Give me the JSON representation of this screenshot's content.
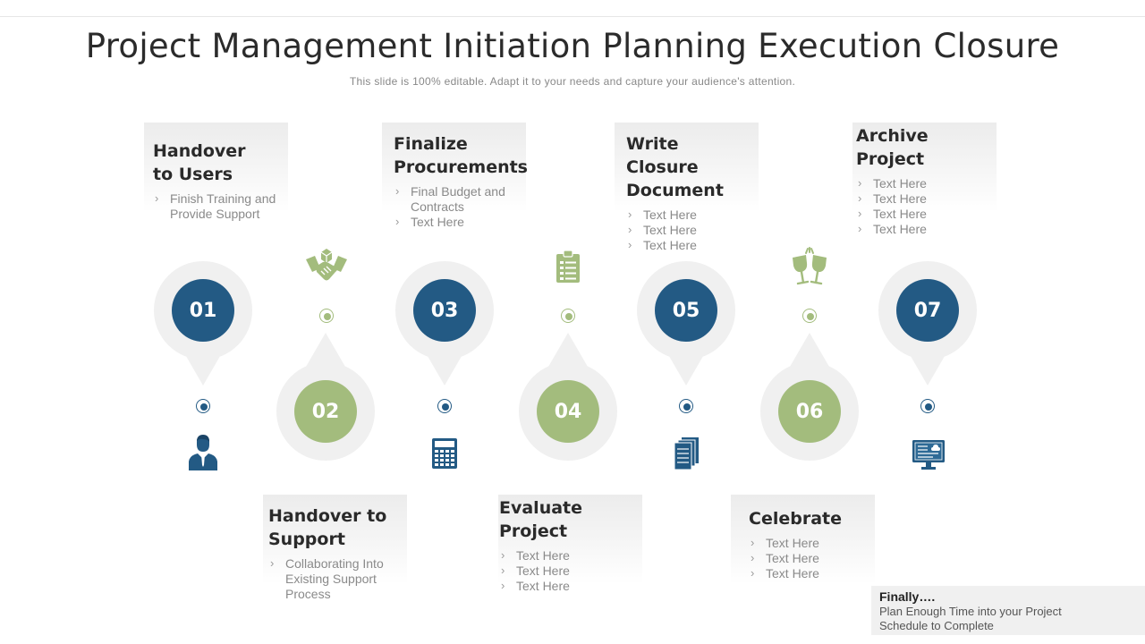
{
  "header": {
    "title": "Project Management Initiation Planning Execution Closure",
    "subtitle": "This slide is 100% editable. Adapt it to your needs and capture your audience's attention."
  },
  "steps": [
    {
      "number": "01",
      "title": "Handover to Users",
      "points": [
        "Finish Training and Provide Support"
      ]
    },
    {
      "number": "02",
      "title": "Handover to Support",
      "points": [
        "Collaborating Into Existing Support Process"
      ]
    },
    {
      "number": "03",
      "title": "Finalize Procurements",
      "points": [
        "Final Budget and Contracts",
        "Text Here"
      ]
    },
    {
      "number": "04",
      "title": "Evaluate Project",
      "points": [
        "Text Here",
        "Text Here",
        "Text Here"
      ]
    },
    {
      "number": "05",
      "title": "Write Closure Document",
      "points": [
        "Text Here",
        "Text Here",
        "Text Here"
      ]
    },
    {
      "number": "06",
      "title": "Celebrate",
      "points": [
        "Text Here",
        "Text Here",
        "Text Here"
      ]
    },
    {
      "number": "07",
      "title": "Archive Project",
      "points": [
        "Text Here",
        "Text Here",
        "Text Here",
        "Text Here"
      ]
    }
  ],
  "icons": [
    "user-icon",
    "handshake-icon",
    "calculator-icon",
    "clipboard-icon",
    "documents-icon",
    "toast-glasses-icon",
    "archive-monitor-icon"
  ],
  "colors": {
    "blue": "#235a84",
    "green": "#a3bc7d",
    "ring": "#f0f0f0"
  },
  "finally": {
    "title": "Finally….",
    "text_line1": "Plan Enough Time into your Project",
    "text_line2": "Schedule  to Complete"
  }
}
